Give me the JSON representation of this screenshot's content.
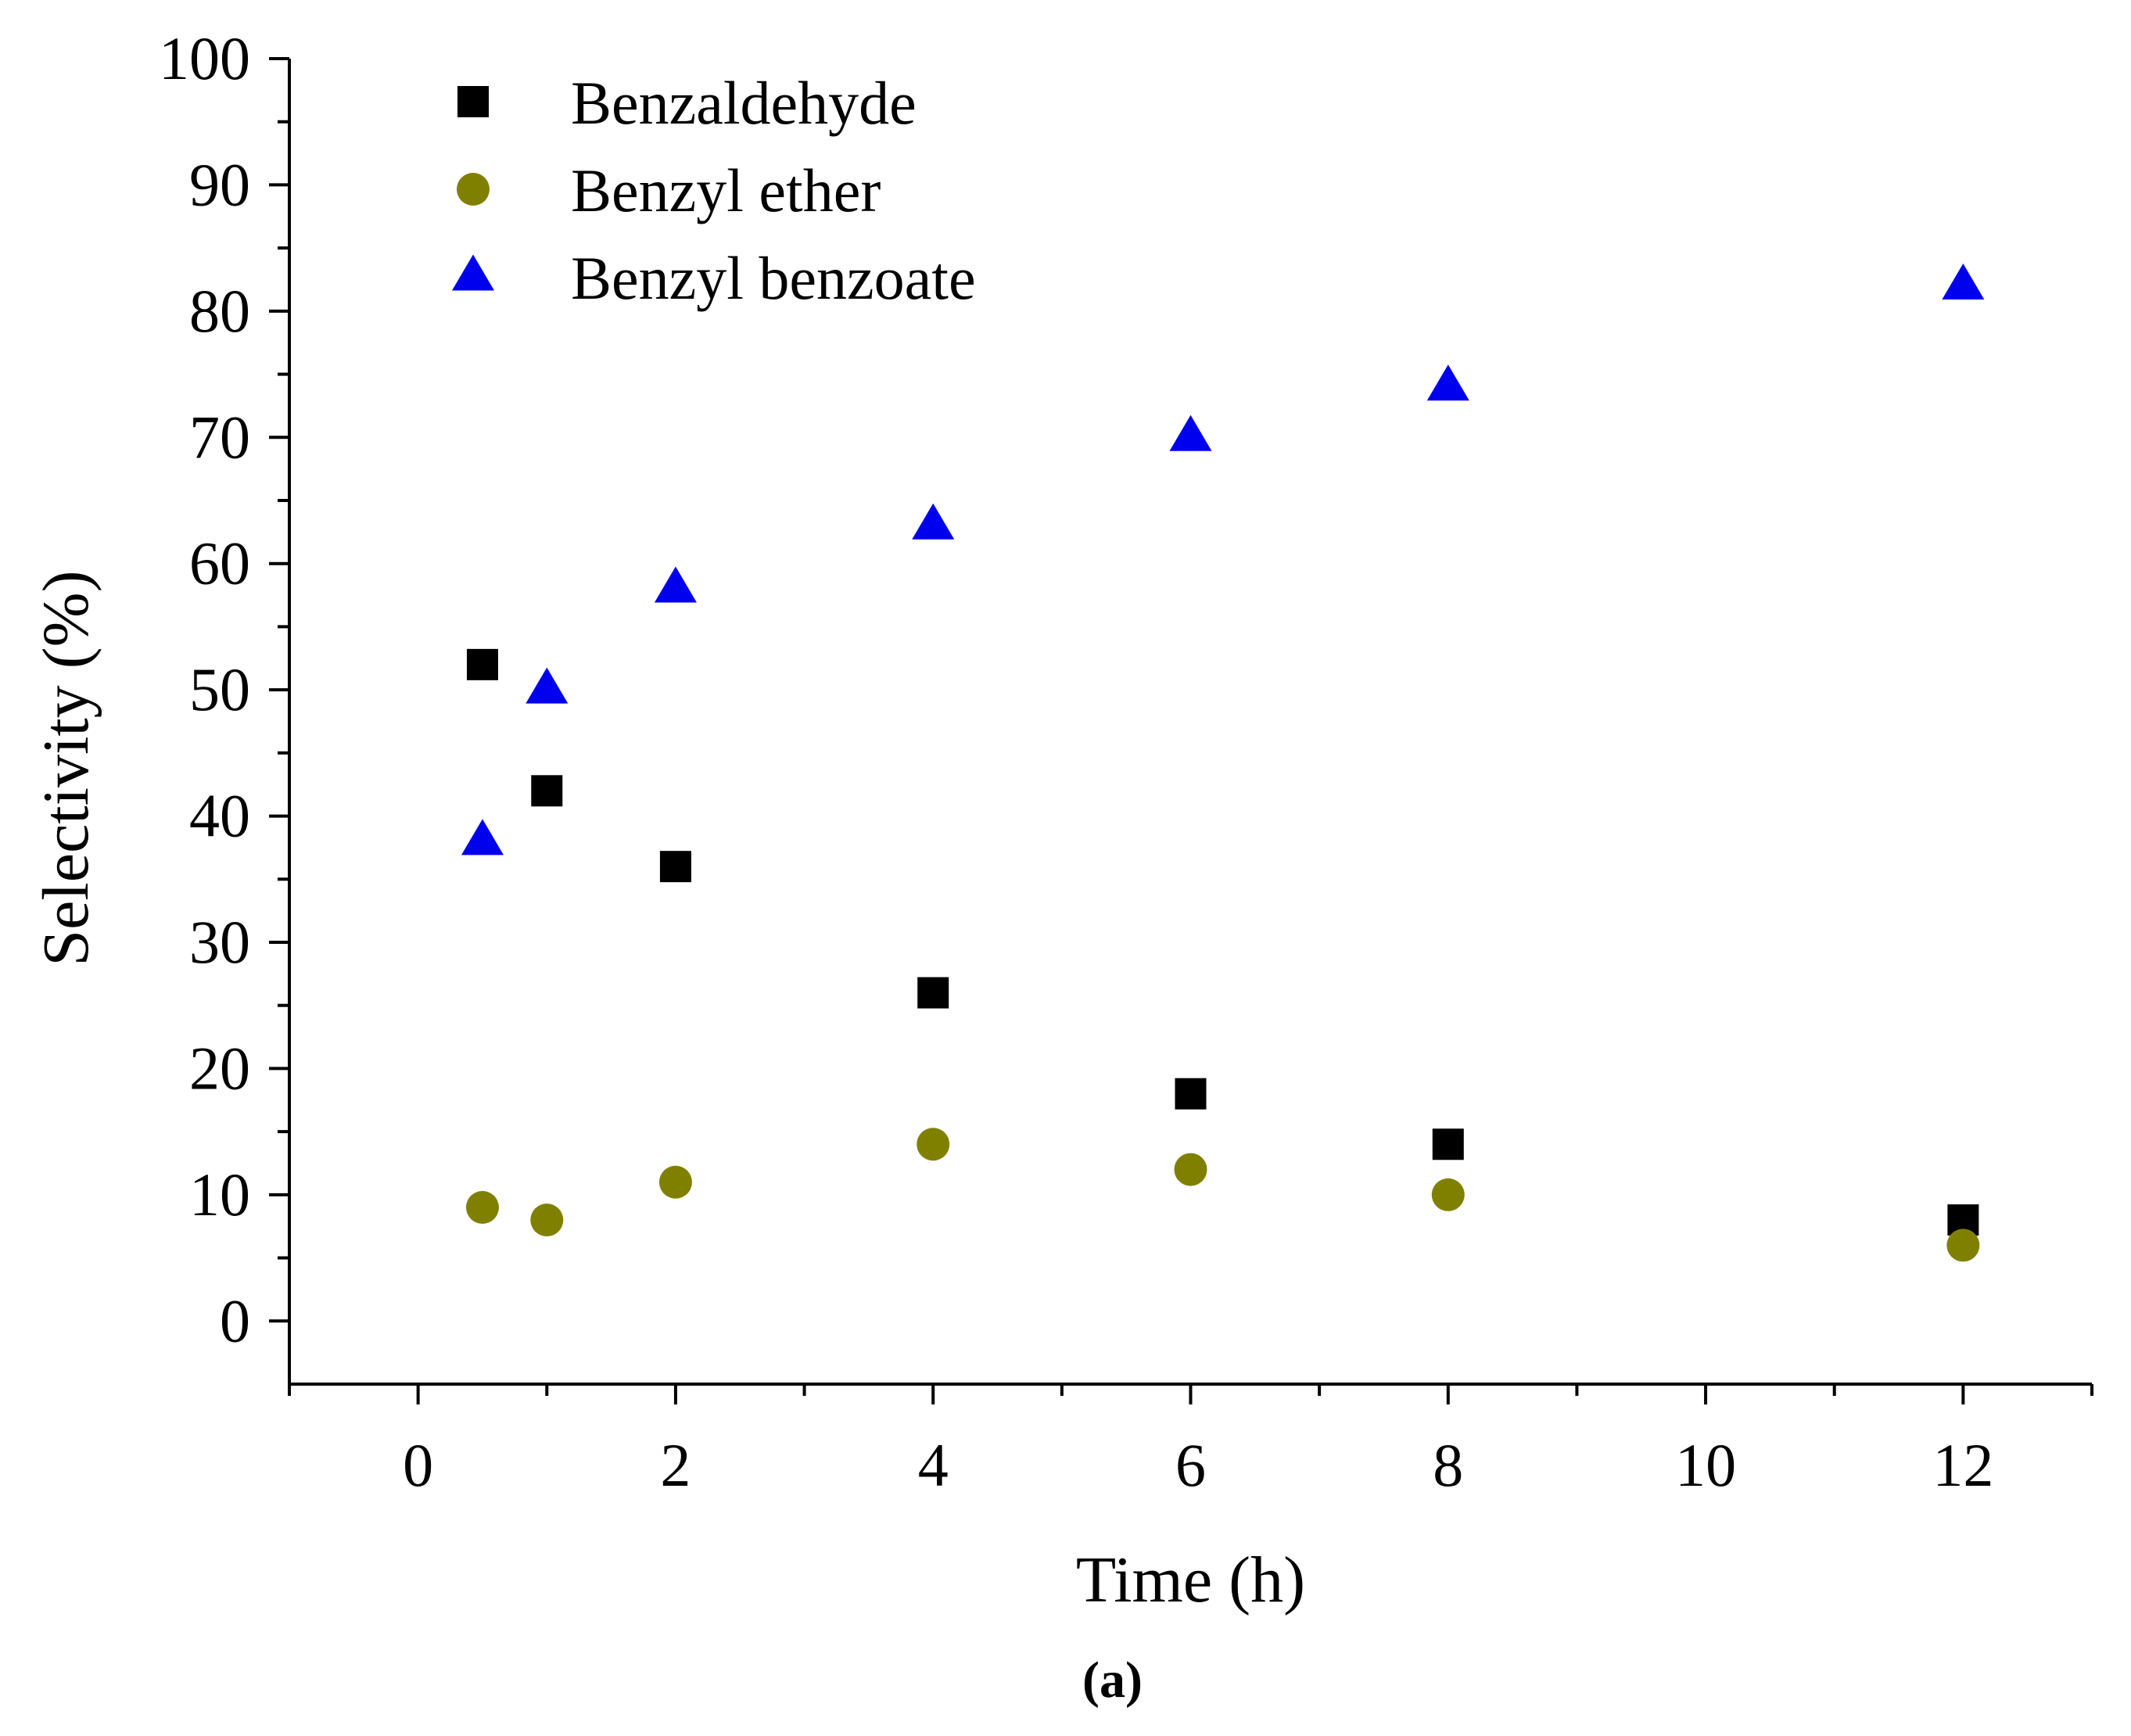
{
  "chart_data": {
    "type": "scatter",
    "title": "",
    "xlabel": "Time (h)",
    "ylabel": "Selectivity (%)",
    "caption": "(a)",
    "xlim": [
      -1,
      13
    ],
    "ylim": [
      -5,
      100
    ],
    "xticks": [
      0,
      2,
      4,
      6,
      8,
      10,
      12
    ],
    "yticks": [
      0,
      10,
      20,
      30,
      40,
      50,
      60,
      70,
      80,
      90,
      100
    ],
    "legend_position": "top-left",
    "series": [
      {
        "name": "Benzaldehyde",
        "marker": "square",
        "color": "#000000",
        "x": [
          0.5,
          1,
          2,
          4,
          6,
          8,
          12
        ],
        "y": [
          52,
          42,
          36,
          26,
          18,
          14,
          8
        ]
      },
      {
        "name": "Benzyl ether",
        "marker": "circle",
        "color": "#808000",
        "x": [
          0.5,
          1,
          2,
          4,
          6,
          8,
          12
        ],
        "y": [
          9,
          8,
          11,
          14,
          12,
          10,
          6
        ]
      },
      {
        "name": "Benzyl benzoate",
        "marker": "triangle",
        "color": "#0000ee",
        "x": [
          0.5,
          1,
          2,
          4,
          6,
          8,
          12
        ],
        "y": [
          38,
          50,
          58,
          63,
          70,
          74,
          82
        ]
      }
    ]
  }
}
